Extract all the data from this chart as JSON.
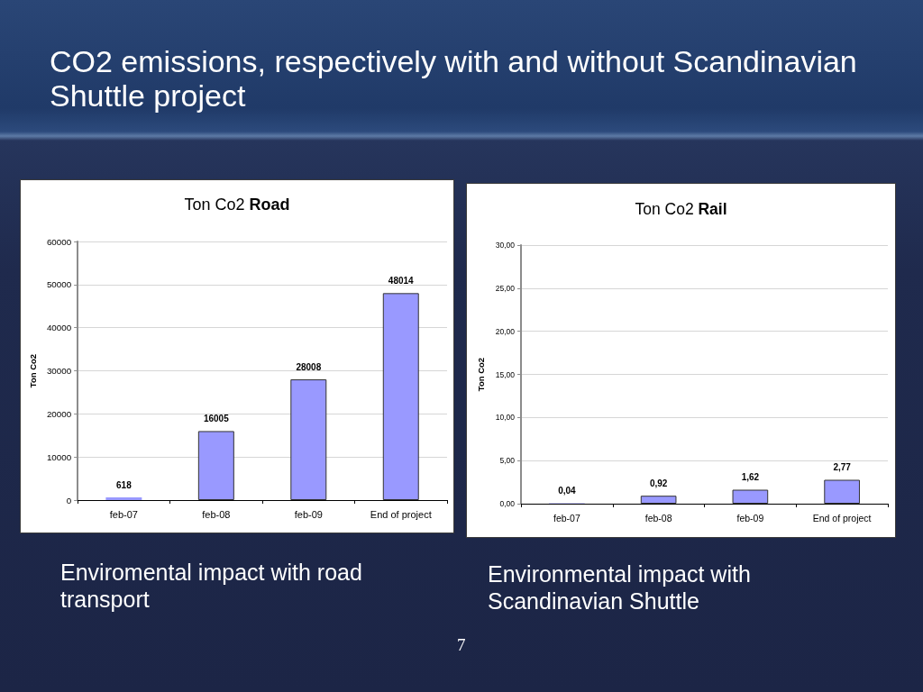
{
  "chart_data": [
    {
      "type": "bar",
      "title": "Ton Co2 Road",
      "ylabel": "Ton Co2",
      "categories": [
        "feb-07",
        "feb-08",
        "feb-09",
        "End of project"
      ],
      "values": [
        618,
        16005,
        28008,
        48014
      ],
      "color": "#9999ff",
      "ylim": [
        0,
        60000
      ],
      "yticks": [
        0,
        10000,
        20000,
        30000,
        40000,
        50000,
        60000
      ],
      "grid": "y",
      "data_labels": true,
      "annotations": [
        "CO2 emissions, respectively with and without Scandinavian Shuttle project",
        "Enviromental impact with road transport"
      ]
    },
    {
      "type": "bar",
      "title": "Ton Co2 Rail",
      "ylabel": "Ton Co2",
      "categories": [
        "feb-07",
        "feb-08",
        "feb-09",
        "End of project"
      ],
      "values": [
        0.04,
        0.92,
        1.62,
        2.77
      ],
      "value_labels": [
        "0,04",
        "0,92",
        "1,62",
        "2,77"
      ],
      "color": "#9999ff",
      "ylim": [
        0,
        30
      ],
      "yticks": [
        {
          "value": 0,
          "label": "0,00"
        },
        {
          "value": 5,
          "label": "5,00"
        },
        {
          "value": 10,
          "label": "10,00"
        },
        {
          "value": 15,
          "label": "15,00"
        },
        {
          "value": 20,
          "label": "20,00"
        },
        {
          "value": 25,
          "label": "25,00"
        },
        {
          "value": 30,
          "label": "30,00"
        }
      ],
      "grid": "y",
      "annotations": [
        "Environmental impact with Scandinavian Shuttle",
        "7"
      ]
    }
  ]
}
